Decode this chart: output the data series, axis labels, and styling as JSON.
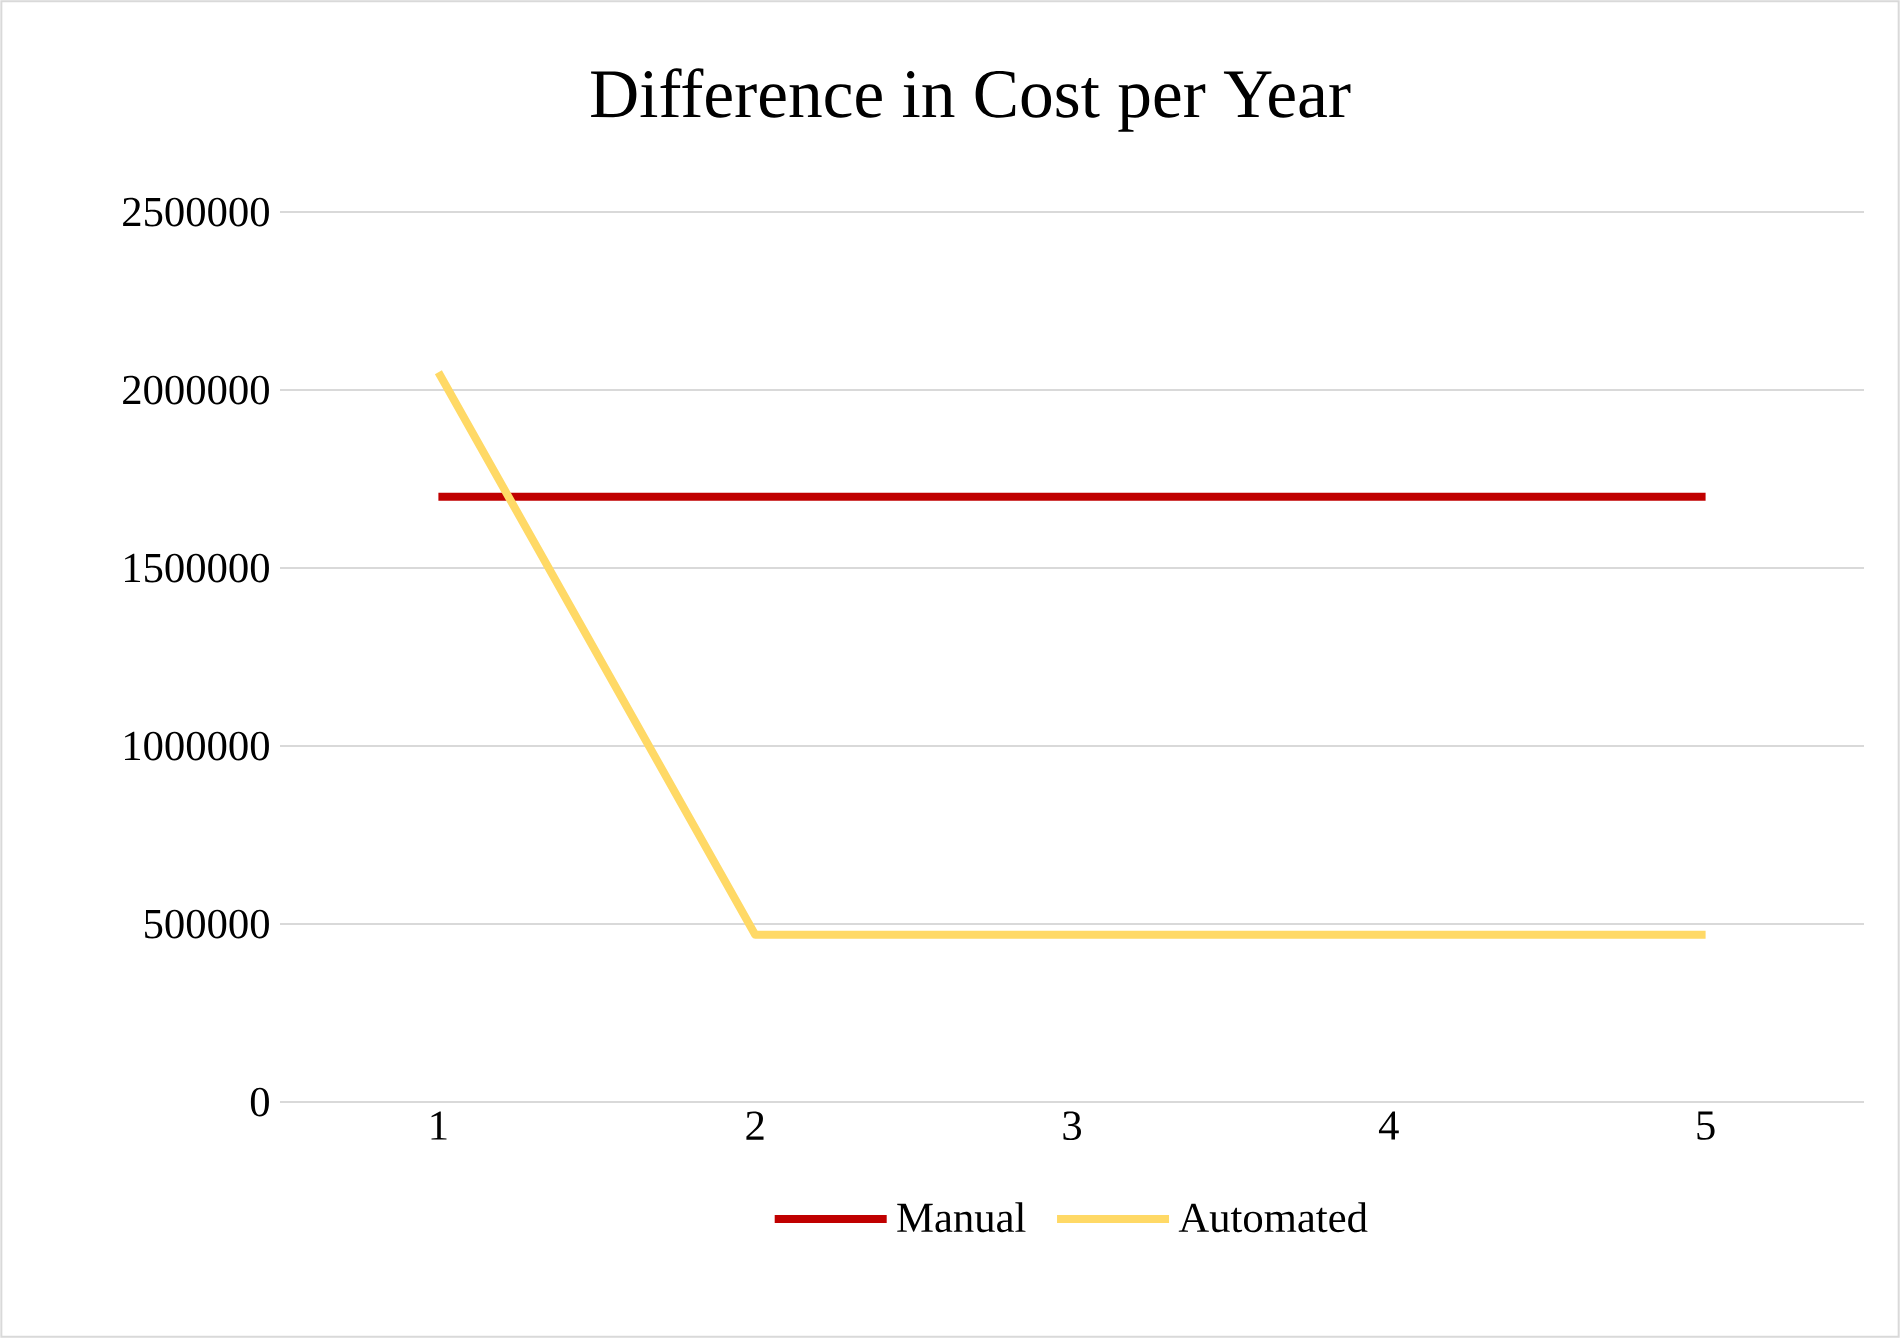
{
  "chart_data": {
    "type": "line",
    "title": "Difference in Cost per Year",
    "categories": [
      "1",
      "2",
      "3",
      "4",
      "5"
    ],
    "series": [
      {
        "name": "Manual",
        "color": "#c00000",
        "values": [
          1700000,
          1700000,
          1700000,
          1700000,
          1700000
        ]
      },
      {
        "name": "Automated",
        "color": "#ffd966",
        "values": [
          2050000,
          470000,
          470000,
          470000,
          470000
        ]
      }
    ],
    "ylim": [
      0,
      2500000
    ],
    "yticks": [
      0,
      500000,
      1000000,
      1500000,
      2000000,
      2500000
    ],
    "grid": "y",
    "legend": "bottom"
  }
}
